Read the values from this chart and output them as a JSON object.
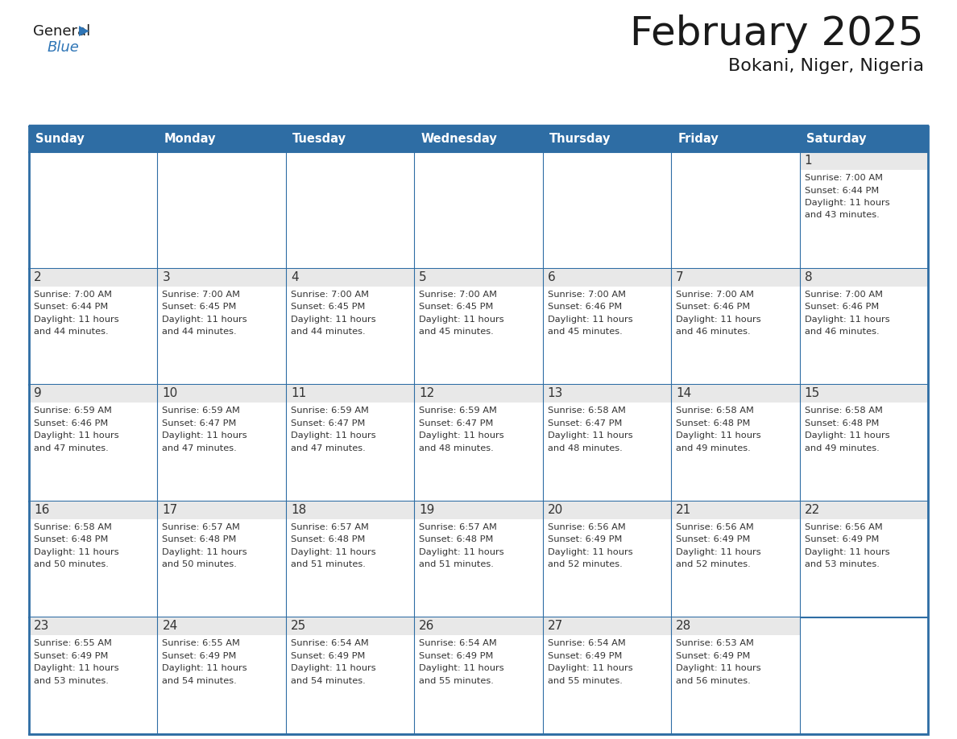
{
  "title": "February 2025",
  "subtitle": "Bokani, Niger, Nigeria",
  "header_color": "#2E6DA4",
  "header_text_color": "#FFFFFF",
  "border_color": "#2E6DA4",
  "day_number_color": "#333333",
  "cell_text_color": "#333333",
  "day_band_color": "#E8E8E8",
  "days_of_week": [
    "Sunday",
    "Monday",
    "Tuesday",
    "Wednesday",
    "Thursday",
    "Friday",
    "Saturday"
  ],
  "calendar_data": [
    [
      {
        "day": null,
        "sunrise": null,
        "sunset": null,
        "daylight": null
      },
      {
        "day": null,
        "sunrise": null,
        "sunset": null,
        "daylight": null
      },
      {
        "day": null,
        "sunrise": null,
        "sunset": null,
        "daylight": null
      },
      {
        "day": null,
        "sunrise": null,
        "sunset": null,
        "daylight": null
      },
      {
        "day": null,
        "sunrise": null,
        "sunset": null,
        "daylight": null
      },
      {
        "day": null,
        "sunrise": null,
        "sunset": null,
        "daylight": null
      },
      {
        "day": 1,
        "sunrise": "7:00 AM",
        "sunset": "6:44 PM",
        "daylight": "11 hours\nand 43 minutes."
      }
    ],
    [
      {
        "day": 2,
        "sunrise": "7:00 AM",
        "sunset": "6:44 PM",
        "daylight": "11 hours\nand 44 minutes."
      },
      {
        "day": 3,
        "sunrise": "7:00 AM",
        "sunset": "6:45 PM",
        "daylight": "11 hours\nand 44 minutes."
      },
      {
        "day": 4,
        "sunrise": "7:00 AM",
        "sunset": "6:45 PM",
        "daylight": "11 hours\nand 44 minutes."
      },
      {
        "day": 5,
        "sunrise": "7:00 AM",
        "sunset": "6:45 PM",
        "daylight": "11 hours\nand 45 minutes."
      },
      {
        "day": 6,
        "sunrise": "7:00 AM",
        "sunset": "6:46 PM",
        "daylight": "11 hours\nand 45 minutes."
      },
      {
        "day": 7,
        "sunrise": "7:00 AM",
        "sunset": "6:46 PM",
        "daylight": "11 hours\nand 46 minutes."
      },
      {
        "day": 8,
        "sunrise": "7:00 AM",
        "sunset": "6:46 PM",
        "daylight": "11 hours\nand 46 minutes."
      }
    ],
    [
      {
        "day": 9,
        "sunrise": "6:59 AM",
        "sunset": "6:46 PM",
        "daylight": "11 hours\nand 47 minutes."
      },
      {
        "day": 10,
        "sunrise": "6:59 AM",
        "sunset": "6:47 PM",
        "daylight": "11 hours\nand 47 minutes."
      },
      {
        "day": 11,
        "sunrise": "6:59 AM",
        "sunset": "6:47 PM",
        "daylight": "11 hours\nand 47 minutes."
      },
      {
        "day": 12,
        "sunrise": "6:59 AM",
        "sunset": "6:47 PM",
        "daylight": "11 hours\nand 48 minutes."
      },
      {
        "day": 13,
        "sunrise": "6:58 AM",
        "sunset": "6:47 PM",
        "daylight": "11 hours\nand 48 minutes."
      },
      {
        "day": 14,
        "sunrise": "6:58 AM",
        "sunset": "6:48 PM",
        "daylight": "11 hours\nand 49 minutes."
      },
      {
        "day": 15,
        "sunrise": "6:58 AM",
        "sunset": "6:48 PM",
        "daylight": "11 hours\nand 49 minutes."
      }
    ],
    [
      {
        "day": 16,
        "sunrise": "6:58 AM",
        "sunset": "6:48 PM",
        "daylight": "11 hours\nand 50 minutes."
      },
      {
        "day": 17,
        "sunrise": "6:57 AM",
        "sunset": "6:48 PM",
        "daylight": "11 hours\nand 50 minutes."
      },
      {
        "day": 18,
        "sunrise": "6:57 AM",
        "sunset": "6:48 PM",
        "daylight": "11 hours\nand 51 minutes."
      },
      {
        "day": 19,
        "sunrise": "6:57 AM",
        "sunset": "6:48 PM",
        "daylight": "11 hours\nand 51 minutes."
      },
      {
        "day": 20,
        "sunrise": "6:56 AM",
        "sunset": "6:49 PM",
        "daylight": "11 hours\nand 52 minutes."
      },
      {
        "day": 21,
        "sunrise": "6:56 AM",
        "sunset": "6:49 PM",
        "daylight": "11 hours\nand 52 minutes."
      },
      {
        "day": 22,
        "sunrise": "6:56 AM",
        "sunset": "6:49 PM",
        "daylight": "11 hours\nand 53 minutes."
      }
    ],
    [
      {
        "day": 23,
        "sunrise": "6:55 AM",
        "sunset": "6:49 PM",
        "daylight": "11 hours\nand 53 minutes."
      },
      {
        "day": 24,
        "sunrise": "6:55 AM",
        "sunset": "6:49 PM",
        "daylight": "11 hours\nand 54 minutes."
      },
      {
        "day": 25,
        "sunrise": "6:54 AM",
        "sunset": "6:49 PM",
        "daylight": "11 hours\nand 54 minutes."
      },
      {
        "day": 26,
        "sunrise": "6:54 AM",
        "sunset": "6:49 PM",
        "daylight": "11 hours\nand 55 minutes."
      },
      {
        "day": 27,
        "sunrise": "6:54 AM",
        "sunset": "6:49 PM",
        "daylight": "11 hours\nand 55 minutes."
      },
      {
        "day": 28,
        "sunrise": "6:53 AM",
        "sunset": "6:49 PM",
        "daylight": "11 hours\nand 56 minutes."
      },
      {
        "day": null,
        "sunrise": null,
        "sunset": null,
        "daylight": null
      }
    ]
  ]
}
